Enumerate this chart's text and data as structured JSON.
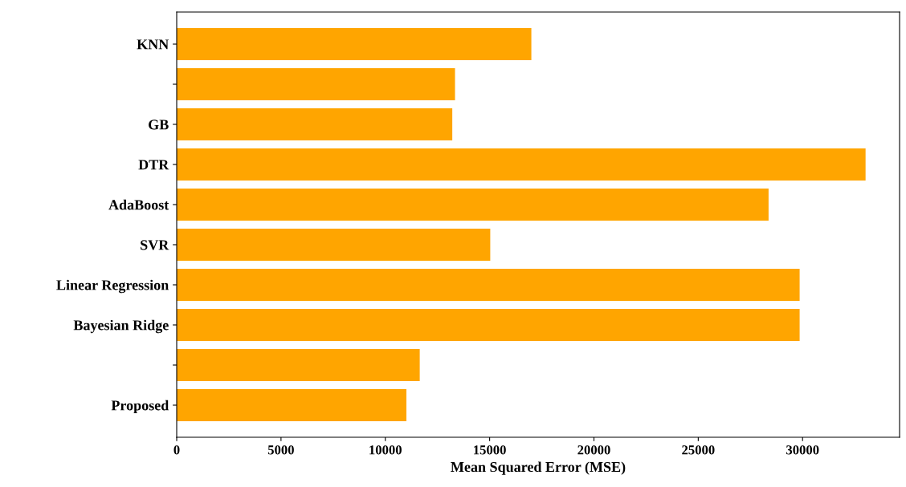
{
  "chart_data": {
    "type": "bar",
    "orientation": "horizontal",
    "xlabel": "Mean Squared Error (MSE)",
    "categories": [
      "KNN",
      null,
      "GB",
      "DTR",
      "AdaBoost",
      "SVR",
      "Linear Regression",
      "Bayesian Ridge",
      null,
      "Proposed"
    ],
    "values": [
      17000,
      13340,
      13210,
      33020,
      28370,
      15030,
      29860,
      29860,
      11650,
      11010
    ],
    "color": "#ffa500",
    "xlim": [
      0,
      34650
    ],
    "xticks": [
      0,
      5000,
      10000,
      15000,
      20000,
      25000,
      30000
    ],
    "grid": false,
    "legend": false
  }
}
